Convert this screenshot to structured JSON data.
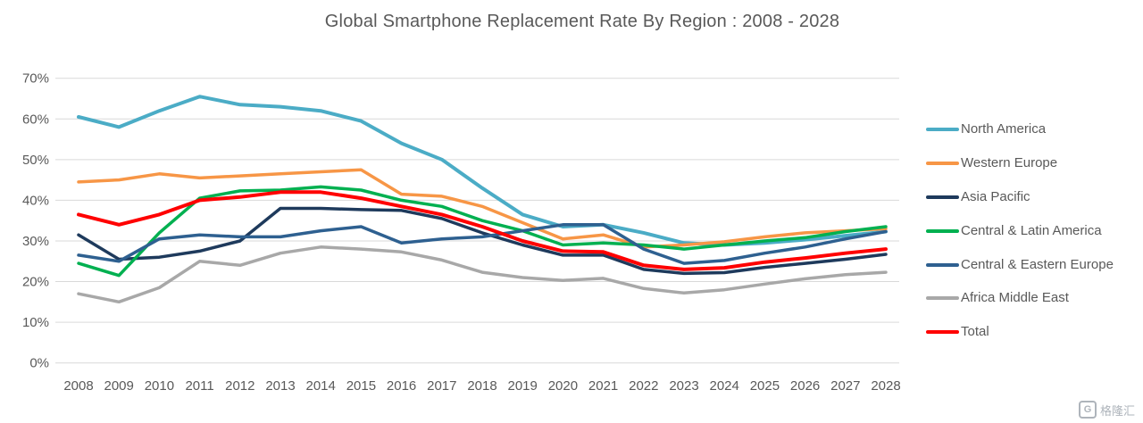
{
  "page": {
    "background": "#FFFFFF",
    "text_color": "#595959",
    "gridline_color": "#D9D9D9"
  },
  "chart_data": {
    "type": "line",
    "title": "Global Smartphone Replacement Rate By Region : 2008 - 2028",
    "x": [
      "2008",
      "2009",
      "2010",
      "2011",
      "2012",
      "2013",
      "2014",
      "2015",
      "2016",
      "2017",
      "2018",
      "2019",
      "2020",
      "2021",
      "2022",
      "2023",
      "2024",
      "2025",
      "2026",
      "2027",
      "2028"
    ],
    "ylim": [
      0,
      70
    ],
    "yticks": [
      0,
      10,
      20,
      30,
      40,
      50,
      60,
      70
    ],
    "ytick_labels": [
      "0%",
      "10%",
      "20%",
      "30%",
      "40%",
      "50%",
      "60%",
      "70%"
    ],
    "grid": true,
    "legend_position": "right",
    "series": [
      {
        "name": "North America",
        "color": "#4BACC6",
        "width": 4,
        "values": [
          60.5,
          58,
          62,
          65.5,
          63.5,
          63,
          62,
          59.5,
          54,
          50,
          43,
          36.5,
          33.5,
          34,
          32,
          29.5,
          29,
          29.5,
          30.3,
          31.3,
          32.3
        ]
      },
      {
        "name": "Western Europe",
        "color": "#F79646",
        "width": 3.5,
        "values": [
          44.5,
          45,
          46.5,
          45.5,
          46,
          46.5,
          47,
          47.5,
          41.5,
          41,
          38.5,
          34.5,
          30.5,
          31.5,
          28.5,
          29,
          29.8,
          31,
          32,
          32.5,
          33
        ]
      },
      {
        "name": "Asia Pacific",
        "color": "#1E3A5C",
        "width": 3.5,
        "values": [
          31.5,
          25.5,
          26,
          27.5,
          30,
          38,
          38,
          37.7,
          37.5,
          35.5,
          32,
          29,
          26.5,
          26.5,
          23,
          22,
          22.2,
          23.5,
          24.5,
          25.5,
          26.7
        ]
      },
      {
        "name": "Central & Latin America",
        "color": "#00B050",
        "width": 3.5,
        "values": [
          24.5,
          21.5,
          32,
          40.5,
          42.3,
          42.5,
          43.3,
          42.5,
          40,
          38.5,
          35,
          32.5,
          29,
          29.5,
          29,
          28,
          29,
          30,
          30.8,
          32.3,
          33.5
        ]
      },
      {
        "name": "Central & Eastern Europe",
        "color": "#2E6090",
        "width": 3.5,
        "values": [
          26.5,
          25,
          30.5,
          31.5,
          31,
          31,
          32.5,
          33.5,
          29.5,
          30.5,
          31,
          32.5,
          34,
          34,
          28,
          24.5,
          25.2,
          27,
          28.5,
          30.5,
          32.3
        ]
      },
      {
        "name": "Africa Middle East",
        "color": "#A8A8A8",
        "width": 3.5,
        "values": [
          17,
          15,
          18.5,
          25,
          24,
          27,
          28.5,
          28,
          27.3,
          25.3,
          22.3,
          21,
          20.3,
          20.8,
          18.3,
          17.2,
          18,
          19.4,
          20.7,
          21.7,
          22.3
        ]
      },
      {
        "name": "Total",
        "color": "#FF0000",
        "width": 4,
        "values": [
          36.5,
          34,
          36.5,
          40,
          40.8,
          42,
          42,
          40.5,
          38.5,
          36.5,
          33.5,
          30,
          27.5,
          27.3,
          24,
          23,
          23.4,
          24.8,
          25.8,
          27,
          28
        ]
      }
    ]
  },
  "watermark": {
    "icon": "G",
    "text": "格隆汇"
  }
}
